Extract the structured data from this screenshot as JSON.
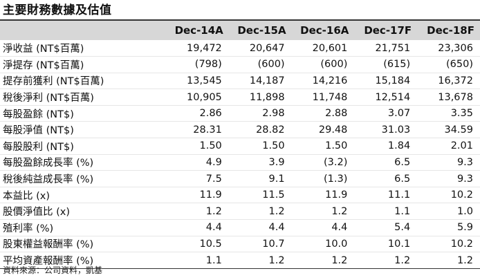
{
  "title": "主要財務數據及估值",
  "columns": [
    "",
    "Dec-14A",
    "Dec-15A",
    "Dec-16A",
    "Dec-17F",
    "Dec-18F"
  ],
  "rows": [
    [
      "淨收益 (NT$百萬)",
      "19,472",
      "20,647",
      "20,601",
      "21,751",
      "23,306"
    ],
    [
      "淨提存 (NT$百萬)",
      "(798)",
      "(600)",
      "(600)",
      "(615)",
      "(650)"
    ],
    [
      "提存前獲利 (NT$百萬)",
      "13,545",
      "14,187",
      "14,216",
      "15,184",
      "16,372"
    ],
    [
      "稅後淨利 (NT$百萬)",
      "10,905",
      "11,898",
      "11,748",
      "12,514",
      "13,678"
    ],
    [
      "每股盈餘 (NT$)",
      "2.86",
      "2.98",
      "2.88",
      "3.07",
      "3.35"
    ],
    [
      "每股淨值 (NT$)",
      "28.31",
      "28.82",
      "29.48",
      "31.03",
      "34.59"
    ],
    [
      "每股股利 (NT$)",
      "1.50",
      "1.50",
      "1.50",
      "1.84",
      "2.01"
    ],
    [
      "每股盈餘成長率 (%)",
      "4.9",
      "3.9",
      "(3.2)",
      "6.5",
      "9.3"
    ],
    [
      "稅後純益成長率 (%)",
      "7.5",
      "9.1",
      "(1.3)",
      "6.5",
      "9.3"
    ],
    [
      "本益比 (x)",
      "11.9",
      "11.5",
      "11.9",
      "11.1",
      "10.2"
    ],
    [
      "股價淨值比 (x)",
      "1.2",
      "1.2",
      "1.2",
      "1.1",
      "1.0"
    ],
    [
      "殖利率 (%)",
      "4.4",
      "4.4",
      "4.4",
      "5.4",
      "5.9"
    ],
    [
      "股東權益報酬率 (%)",
      "10.5",
      "10.7",
      "10.0",
      "10.1",
      "10.2"
    ],
    [
      "平均資產報酬率 (%)",
      "1.1",
      "1.2",
      "1.2",
      "1.2",
      "1.2"
    ]
  ],
  "source": "資料來源：公司資料，凱基"
}
